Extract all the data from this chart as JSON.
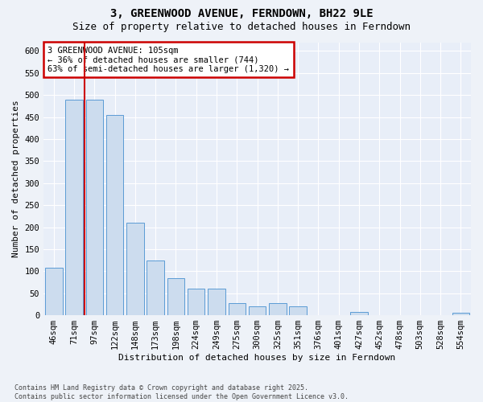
{
  "title": "3, GREENWOOD AVENUE, FERNDOWN, BH22 9LE",
  "subtitle": "Size of property relative to detached houses in Ferndown",
  "xlabel": "Distribution of detached houses by size in Ferndown",
  "ylabel": "Number of detached properties",
  "footer": "Contains HM Land Registry data © Crown copyright and database right 2025.\nContains public sector information licensed under the Open Government Licence v3.0.",
  "categories": [
    "46sqm",
    "71sqm",
    "97sqm",
    "122sqm",
    "148sqm",
    "173sqm",
    "198sqm",
    "224sqm",
    "249sqm",
    "275sqm",
    "300sqm",
    "325sqm",
    "351sqm",
    "376sqm",
    "401sqm",
    "427sqm",
    "452sqm",
    "478sqm",
    "503sqm",
    "528sqm",
    "554sqm"
  ],
  "values": [
    107,
    490,
    490,
    455,
    210,
    125,
    85,
    60,
    60,
    28,
    20,
    27,
    20,
    0,
    0,
    7,
    0,
    0,
    0,
    0,
    5
  ],
  "bar_color": "#ccdcee",
  "bar_edge_color": "#5b9bd5",
  "vline_x": 1.5,
  "annotation_text": "3 GREENWOOD AVENUE: 105sqm\n← 36% of detached houses are smaller (744)\n63% of semi-detached houses are larger (1,320) →",
  "annotation_box_color": "#ffffff",
  "annotation_box_edge": "#cc0000",
  "vline_color": "#cc0000",
  "ylim": [
    0,
    620
  ],
  "yticks": [
    0,
    50,
    100,
    150,
    200,
    250,
    300,
    350,
    400,
    450,
    500,
    550,
    600
  ],
  "background_color": "#eef2f8",
  "plot_background": "#e8eef8",
  "grid_color": "#ffffff",
  "title_fontsize": 10,
  "subtitle_fontsize": 9,
  "axis_label_fontsize": 8,
  "tick_fontsize": 7.5
}
